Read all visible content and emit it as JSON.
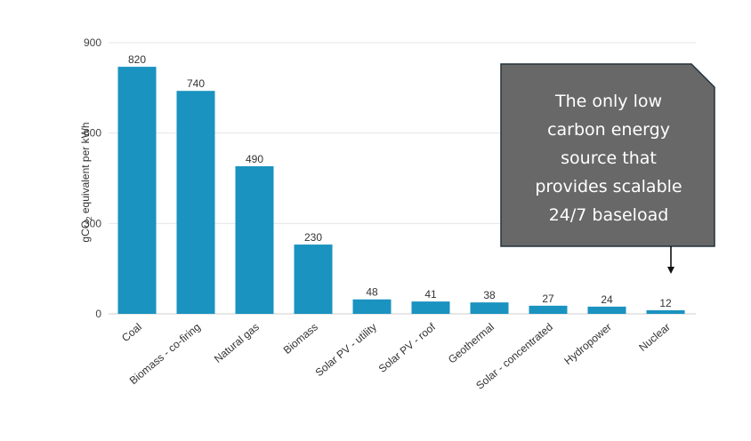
{
  "chart_data": {
    "type": "bar",
    "title": "",
    "xlabel": "",
    "ylabel": "gCO2 equivalent per kWh",
    "ylabel_parts": {
      "pre": "gCO",
      "sub": "2",
      "post": " equivalent per kWh"
    },
    "ylim": [
      0,
      900
    ],
    "yticks": [
      0,
      300,
      600,
      900
    ],
    "ytick_labels": [
      "0",
      "300",
      "600",
      "900"
    ],
    "grid": true,
    "categories": [
      "Coal",
      "Biomass - co-firing",
      "Natural gas",
      "Biomass",
      "Solar PV - utility",
      "Solar PV - roof",
      "Geothermal",
      "Solar - concentrated",
      "Hydropower",
      "Nuclear"
    ],
    "values": [
      820,
      740,
      490,
      230,
      48,
      41,
      38,
      27,
      24,
      12
    ],
    "value_labels": [
      "820",
      "740",
      "490",
      "230",
      "48",
      "41",
      "38",
      "27",
      "24",
      "12"
    ],
    "bar_color": "#1a93c0",
    "annotation": {
      "lines": [
        "The only low",
        "carbon energy",
        "source that",
        "provides scalable",
        "24/7 baseload"
      ],
      "target": "Nuclear",
      "box_color": "#686868"
    }
  }
}
